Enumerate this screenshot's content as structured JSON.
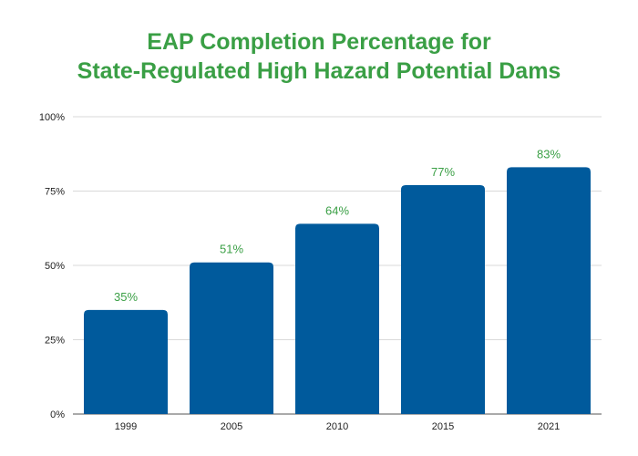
{
  "chart_data": {
    "type": "bar",
    "title_lines": [
      "EAP Completion Percentage for",
      "State-Regulated High Hazard Potential Dams"
    ],
    "categories": [
      "1999",
      "2005",
      "2010",
      "2015",
      "2021"
    ],
    "values": [
      35,
      51,
      64,
      77,
      83
    ],
    "data_labels": [
      "35%",
      "51%",
      "64%",
      "77%",
      "83%"
    ],
    "xlabel": "",
    "ylabel": "",
    "ylim": [
      0,
      100
    ],
    "yticks": [
      0,
      25,
      50,
      75,
      100
    ],
    "ytick_labels": [
      "0%",
      "25%",
      "50%",
      "75%",
      "100%"
    ],
    "grid": true,
    "legend": "none",
    "colors": {
      "bar": "#005a9c",
      "title": "#3a9f45",
      "data_label": "#3a9f45",
      "grid": "#d9d9d9",
      "axis": "#555555"
    }
  }
}
